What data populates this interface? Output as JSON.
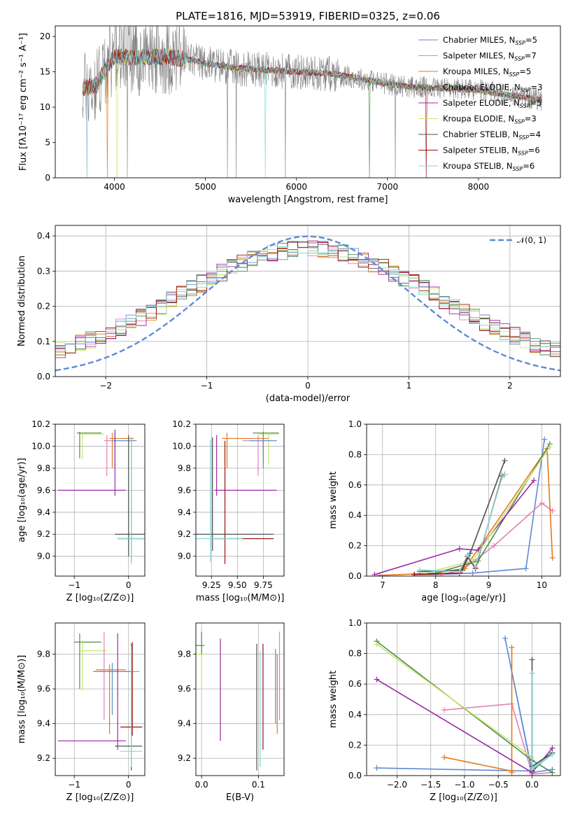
{
  "colors": [
    "#5f8ad6",
    "#e57fb6",
    "#e07a1f",
    "#4f8a50",
    "#9a2aaa",
    "#c7e56e",
    "#505050",
    "#9a1010",
    "#82d8d8"
  ],
  "gauss_color": "#5f8ad6",
  "chart_data": [
    {
      "id": "spectrum",
      "type": "line",
      "title": "PLATE=1816, MJD=53919, FIBERID=0325, z=0.06",
      "xlabel": "wavelength [Angstrom, rest frame]",
      "ylabel": "Flux [fλ10⁻¹⁷ erg cm⁻² s⁻¹ A⁻¹]",
      "xlim": [
        3350,
        8900
      ],
      "ylim": [
        0,
        21.5
      ],
      "xticks": [
        "4000",
        "5000",
        "6000",
        "7000",
        "8000"
      ],
      "yticks": [
        "0",
        "5",
        "10",
        "15",
        "20"
      ],
      "legend_position": "top-right",
      "data_color": "#808080",
      "series": [
        {
          "name": "Chabrier MILES, N",
          "ssp": "5"
        },
        {
          "name": "Salpeter MILES, N",
          "ssp": "7"
        },
        {
          "name": "Kroupa MILES, N",
          "ssp": "5"
        },
        {
          "name": "Chabrier ELODIE, N",
          "ssp": "3"
        },
        {
          "name": "Salpeter ELODIE, N",
          "ssp": "5"
        },
        {
          "name": "Kroupa ELODIE, N",
          "ssp": "3"
        },
        {
          "name": "Chabrier STELIB, N",
          "ssp": "4"
        },
        {
          "name": "Salpeter STELIB, N",
          "ssp": "6"
        },
        {
          "name": "Kroupa STELIB, N",
          "ssp": "6"
        }
      ],
      "ssp_sub": "SSP",
      "continuum": [
        [
          3650,
          12.5
        ],
        [
          3800,
          13.2
        ],
        [
          4000,
          17.2
        ],
        [
          4200,
          17.0
        ],
        [
          4500,
          17.2
        ],
        [
          4800,
          16.8
        ],
        [
          5000,
          16.2
        ],
        [
          5300,
          15.6
        ],
        [
          5600,
          15.3
        ],
        [
          6000,
          15.0
        ],
        [
          6400,
          14.7
        ],
        [
          6800,
          13.8
        ],
        [
          7000,
          13.3
        ],
        [
          7300,
          12.8
        ],
        [
          7600,
          12.7
        ],
        [
          8000,
          12.4
        ],
        [
          8400,
          11.6
        ],
        [
          8700,
          11.0
        ]
      ]
    },
    {
      "id": "residuals",
      "type": "line",
      "xlabel": "(data-model)/error",
      "ylabel": "Normed distribution",
      "xlim": [
        -2.5,
        2.5
      ],
      "ylim": [
        0,
        0.43
      ],
      "xticks": [
        "−2",
        "−1",
        "0",
        "1",
        "2"
      ],
      "yticks": [
        "0.0",
        "0.1",
        "0.2",
        "0.3",
        "0.4"
      ],
      "grid": true,
      "legend": "𝒩(0, 1)",
      "legend_position": "top-right"
    },
    {
      "id": "z_age",
      "type": "scatter",
      "xlabel": "Z [log₁₀(Z/Z⊙)]",
      "ylabel": "age  [log₁₀(age/yr)]",
      "xlim": [
        -1.35,
        0.3
      ],
      "ylim": [
        8.82,
        10.2
      ],
      "xticks": [
        "−1",
        "0"
      ],
      "xtickvals": [
        -1,
        0
      ],
      "yticks": [
        "9.0",
        "9.2",
        "9.4",
        "9.6",
        "9.8",
        "10.0",
        "10.2"
      ],
      "ytickvals": [
        9.0,
        9.2,
        9.4,
        9.6,
        9.8,
        10.0,
        10.2
      ],
      "grid": true
    },
    {
      "id": "mass_age",
      "type": "scatter",
      "xlabel": "mass [log₁₀(M/M⊙)]",
      "ylabel": "",
      "xlim": [
        9.1,
        9.95
      ],
      "ylim": [
        8.82,
        10.2
      ],
      "xticks": [
        "9.25",
        "9.50",
        "9.75"
      ],
      "xtickvals": [
        9.25,
        9.5,
        9.75
      ],
      "yticks": [
        "9.0",
        "9.2",
        "9.4",
        "9.6",
        "9.8",
        "10.0",
        "10.2"
      ],
      "ytickvals": [
        9.0,
        9.2,
        9.4,
        9.6,
        9.8,
        10.0,
        10.2
      ],
      "grid": true
    },
    {
      "id": "age_weight",
      "type": "line",
      "xlabel": "age  [log₁₀(age/yr)]",
      "ylabel": "mass weight",
      "xlim": [
        6.7,
        10.35
      ],
      "ylim": [
        0,
        1.0
      ],
      "xticks": [
        "7",
        "8",
        "9",
        "10"
      ],
      "xtickvals": [
        7,
        8,
        9,
        10
      ],
      "yticks": [
        "0.0",
        "0.2",
        "0.4",
        "0.6",
        "0.8",
        "1.0"
      ],
      "ytickvals": [
        0,
        0.2,
        0.4,
        0.6,
        0.8,
        1.0
      ],
      "grid": true,
      "series": [
        {
          "x": [
            7.6,
            8.0,
            8.7,
            9.7,
            10.05
          ],
          "y": [
            0.01,
            0.01,
            0.02,
            0.05,
            0.9
          ]
        },
        {
          "x": [
            8.1,
            8.5,
            9.1,
            10.0,
            10.2
          ],
          "y": [
            0.01,
            0.04,
            0.2,
            0.48,
            0.43
          ]
        },
        {
          "x": [
            6.95,
            8.0,
            8.55,
            10.1,
            10.2
          ],
          "y": [
            0.005,
            0.02,
            0.05,
            0.84,
            0.12
          ]
        },
        {
          "x": [
            7.6,
            8.0,
            8.8,
            10.15
          ],
          "y": [
            0.01,
            0.02,
            0.1,
            0.87
          ]
        },
        {
          "x": [
            6.85,
            8.45,
            8.8,
            9.85
          ],
          "y": [
            0.01,
            0.18,
            0.17,
            0.63
          ]
        },
        {
          "x": [
            7.8,
            8.7,
            10.15
          ],
          "y": [
            0.02,
            0.1,
            0.85
          ]
        },
        {
          "x": [
            7.7,
            8.5,
            8.65,
            9.3
          ],
          "y": [
            0.03,
            0.04,
            0.15,
            0.76
          ]
        },
        {
          "x": [
            7.6,
            8.45,
            8.6,
            8.75,
            9.25,
            9.3
          ],
          "y": [
            0.01,
            0.02,
            0.13,
            0.05,
            0.66,
            0.67
          ]
        },
        {
          "x": [
            7.7,
            8.45,
            8.6,
            8.75,
            9.25,
            9.3
          ],
          "y": [
            0.04,
            0.03,
            0.14,
            0.06,
            0.65,
            0.67
          ]
        }
      ]
    },
    {
      "id": "z_mass",
      "type": "scatter",
      "xlabel": "Z [log₁₀(Z/Z⊙)]",
      "ylabel": "mass [log₁₀(M/M⊙)]",
      "xlim": [
        -1.35,
        0.3
      ],
      "ylim": [
        9.1,
        9.98
      ],
      "xticks": [
        "−1",
        "0"
      ],
      "xtickvals": [
        -1,
        0
      ],
      "yticks": [
        "9.2",
        "9.4",
        "9.6",
        "9.8"
      ],
      "ytickvals": [
        9.2,
        9.4,
        9.6,
        9.8
      ],
      "grid": true
    },
    {
      "id": "ebv_mass",
      "type": "scatter",
      "xlabel": "E(B-V)",
      "ylabel": "",
      "xlim": [
        -0.01,
        0.145
      ],
      "ylim": [
        9.1,
        9.98
      ],
      "xticks": [
        "0.0",
        "0.1"
      ],
      "xtickvals": [
        0,
        0.1
      ],
      "yticks": [
        "9.2",
        "9.4",
        "9.6",
        "9.8"
      ],
      "ytickvals": [
        9.2,
        9.4,
        9.6,
        9.8
      ],
      "grid": true
    },
    {
      "id": "z_weight",
      "type": "line",
      "xlabel": "Z [log₁₀(Z/Z⊙)]",
      "ylabel": "mass weight",
      "xlim": [
        -2.45,
        0.42
      ],
      "ylim": [
        0,
        1.0
      ],
      "xticks": [
        "−2.0",
        "−1.5",
        "−1.0",
        "−0.5",
        "0.0"
      ],
      "xtickvals": [
        -2,
        -1.5,
        -1,
        -0.5,
        0
      ],
      "yticks": [
        "0.0",
        "0.2",
        "0.4",
        "0.6",
        "0.8",
        "1.0"
      ],
      "ytickvals": [
        0,
        0.2,
        0.4,
        0.6,
        0.8,
        1.0
      ],
      "grid": true,
      "series": [
        {
          "x": [
            -2.3,
            0.0,
            -0.4,
            0.0,
            0.3
          ],
          "y": [
            0.05,
            0.03,
            0.9,
            0.02,
            0.04
          ]
        },
        {
          "x": [
            -1.3,
            -0.3,
            0.0,
            0.3
          ],
          "y": [
            0.43,
            0.47,
            0.01,
            0.02
          ]
        },
        {
          "x": [
            -1.3,
            -0.3,
            -0.3,
            -0.3
          ],
          "y": [
            0.12,
            0.03,
            0.84,
            0.02
          ]
        },
        {
          "x": [
            -2.3,
            0.0,
            0.3
          ],
          "y": [
            0.88,
            0.1,
            0.02
          ]
        },
        {
          "x": [
            -2.3,
            0.0,
            0.3
          ],
          "y": [
            0.63,
            0.02,
            0.18
          ]
        },
        {
          "x": [
            -2.3,
            0.0
          ],
          "y": [
            0.86,
            0.12
          ]
        },
        {
          "x": [
            0.0,
            0.0,
            0.3,
            0.0
          ],
          "y": [
            0.76,
            0.03,
            0.15,
            0.06
          ]
        },
        {
          "x": [
            0.0,
            0.0,
            0.3,
            0.0
          ],
          "y": [
            0.67,
            0.05,
            0.14,
            0.04
          ]
        },
        {
          "x": [
            0.0,
            0.0,
            0.3,
            0.0
          ],
          "y": [
            0.67,
            0.05,
            0.14,
            0.04
          ]
        }
      ]
    }
  ]
}
